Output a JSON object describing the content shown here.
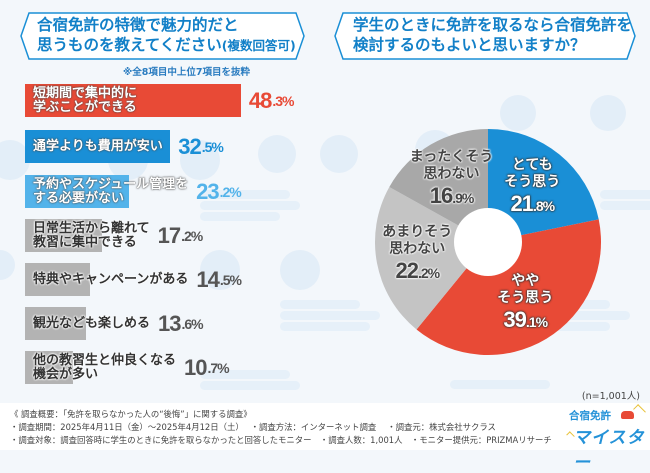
{
  "colors": {
    "red": "#e84a36",
    "blue": "#1a8fd6",
    "light_blue": "#53b3ea",
    "gray_bar": "#b3b3b3",
    "pie_gray_light": "#c4c4c4",
    "pie_gray_dark": "#a8a8a8",
    "title_text": "#1280c8"
  },
  "left_panel": {
    "title_line1": "合宿免許の特徴で魅力的だと",
    "title_line2": "思うものを教えてください",
    "title_suffix": "(複数回答可)",
    "note": "※全8項目中上位7項目を抜粋"
  },
  "right_panel": {
    "title_line1": "学生のときに免許を取るなら合宿免許を",
    "title_line2": "検討するのもよいと思いますか？"
  },
  "chart_data": [
    {
      "type": "bar",
      "orientation": "horizontal",
      "title": "合宿免許の特徴で魅力的だと思うものを教えてください(複数回答可)",
      "note": "※全8項目中上位7項目を抜粋",
      "unit": "%",
      "xlim": [
        0,
        50
      ],
      "categories": [
        "短期間で集中的に\n学ぶことができる",
        "通学よりも費用が安い",
        "予約やスケジュール管理を\nする必要がない",
        "日常生活から離れて\n教習に集中できる",
        "特典やキャンペーンがある",
        "観光なども楽しめる",
        "他の教習生と仲良くなる\n機会が多い"
      ],
      "values": [
        48.3,
        32.5,
        23.2,
        17.2,
        14.5,
        13.6,
        10.7
      ],
      "value_labels": [
        {
          "int": "48",
          "dec": ".3",
          "pct": "%"
        },
        {
          "int": "32",
          "dec": ".5",
          "pct": "%"
        },
        {
          "int": "23",
          "dec": ".2",
          "pct": "%"
        },
        {
          "int": "17",
          "dec": ".2",
          "pct": "%"
        },
        {
          "int": "14",
          "dec": ".5",
          "pct": "%"
        },
        {
          "int": "13",
          "dec": ".6",
          "pct": "%"
        },
        {
          "int": "10",
          "dec": ".7",
          "pct": "%"
        }
      ],
      "bar_colors": [
        "#e84a36",
        "#1a8fd6",
        "#53b3ea",
        "#b3b3b3",
        "#b3b3b3",
        "#b3b3b3",
        "#b3b3b3"
      ],
      "value_colors": [
        "#e84a36",
        "#1a8fd6",
        "#53b3ea",
        "#555555",
        "#555555",
        "#555555",
        "#555555"
      ]
    },
    {
      "type": "pie",
      "donut": true,
      "title": "学生のときに免許を取るなら合宿免許を検討するのもよいと思いますか？",
      "sample_size": "(n=1,001人)",
      "slices": [
        {
          "label": "とても\nそう思う",
          "value": 21.8,
          "int": "21",
          "dec": ".8",
          "color": "#1a8fd6",
          "style": "white"
        },
        {
          "label": "やや\nそう思う",
          "value": 39.1,
          "int": "39",
          "dec": ".1",
          "color": "#e84a36",
          "style": "white"
        },
        {
          "label": "あまりそう\n思わない",
          "value": 22.2,
          "int": "22",
          "dec": ".2",
          "color": "#c4c4c4",
          "style": "dark"
        },
        {
          "label": "まったくそう\n思わない",
          "value": 16.9,
          "int": "16",
          "dec": ".9",
          "color": "#a8a8a8",
          "style": "dark"
        }
      ],
      "start_angle": "12 o'clock",
      "direction": "clockwise"
    }
  ],
  "sample_note": "(n=1,001人)",
  "footer": {
    "line1": "《 調査概要：「免許を取らなかった人の“後悔”」に関する調査》",
    "line2": "・調査期間：2025年4月11日（金）～2025年4月12日（土）　 ・調査方法：インターネット調査　 ・調査元：株式会社サクラス",
    "line3": "・調査対象：調査回答時に学生のときに免許を取らなかったと回答したモニター　・調査人数：1,001人　・モニター提供元：PRIZMAリサーチ"
  },
  "logo": {
    "line1": "合宿免許",
    "line2": "マイスター"
  }
}
